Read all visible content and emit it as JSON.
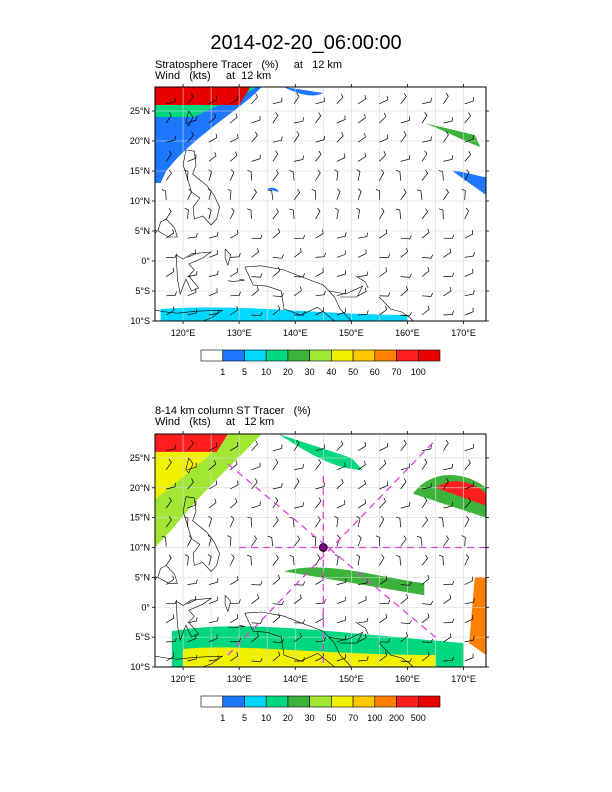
{
  "title": "2014-02-20_06:00:00",
  "panel1": {
    "subtitle_line1": "Stratosphere Tracer   (%)     at   12 km",
    "subtitle_line2": "Wind   (kts)     at  12 km",
    "lat_labels": [
      "25°N",
      "20°N",
      "15°N",
      "10°N",
      "5°N",
      "0°",
      "5°S",
      "10°S"
    ],
    "lon_labels": [
      "120°E",
      "130°E",
      "140°E",
      "150°E",
      "160°E",
      "170°E"
    ],
    "colorbar_labels": [
      "1",
      "5",
      "10",
      "20",
      "30",
      "40",
      "50",
      "60",
      "70",
      "100"
    ],
    "colorbar_colors": [
      "#ffffff",
      "#1e78ff",
      "#00d8ff",
      "#00d87f",
      "#3cb43c",
      "#a0e632",
      "#f0f000",
      "#ffc800",
      "#ff8000",
      "#ff1e1e",
      "#e60000"
    ]
  },
  "panel2": {
    "subtitle_line1": "8-14 km column ST Tracer   (%)",
    "subtitle_line2": "Wind   (kts)     at   12 km",
    "lat_labels": [
      "25°N",
      "20°N",
      "15°N",
      "10°N",
      "5°N",
      "0°",
      "5°S",
      "10°S"
    ],
    "lon_labels": [
      "120°E",
      "130°E",
      "140°E",
      "150°E",
      "160°E",
      "170°E"
    ],
    "colorbar_labels": [
      "1",
      "5",
      "10",
      "20",
      "30",
      "50",
      "70",
      "100",
      "200",
      "500"
    ],
    "colorbar_colors": [
      "#ffffff",
      "#1e78ff",
      "#00d8ff",
      "#00d87f",
      "#3cb43c",
      "#a0e632",
      "#f0f000",
      "#ffc800",
      "#ff8000",
      "#ff1e1e",
      "#e60000"
    ]
  }
}
